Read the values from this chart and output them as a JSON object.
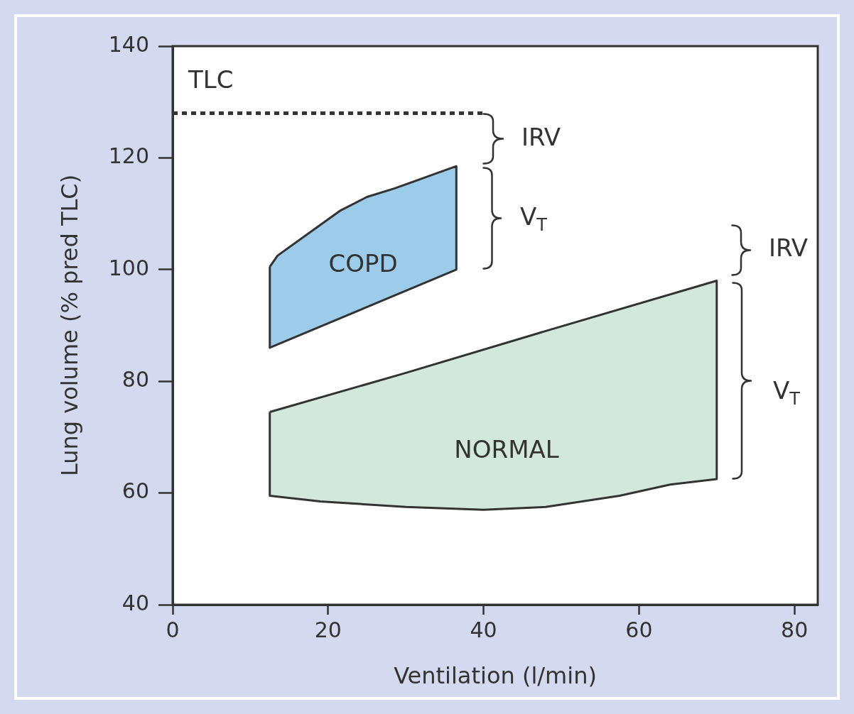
{
  "chart_data": {
    "type": "area",
    "xlabel": "Ventilation (l/min)",
    "ylabel": "Lung volume (% pred TLC)",
    "xlim": [
      0,
      83
    ],
    "xticks": [
      0,
      20,
      40,
      60,
      80
    ],
    "ylim": [
      40,
      140
    ],
    "yticks": [
      40,
      60,
      80,
      100,
      120,
      140
    ],
    "series": [
      {
        "type": "line",
        "color": "#333333",
        "line_style": "dotted",
        "x": [
          0,
          40
        ],
        "values": [
          128,
          128
        ]
      },
      {
        "name": "COPD",
        "color": "#9dcbea",
        "x": [
          12.5,
          13.5,
          18,
          21.5,
          25,
          28.5,
          32.5,
          36.5,
          36.5,
          12.5
        ],
        "values": [
          100.5,
          102.5,
          107,
          110.5,
          113,
          114.5,
          116.5,
          118.5,
          100,
          86
        ]
      },
      {
        "name": "NORMAL",
        "color": "#d2e8dc",
        "x": [
          12.5,
          30,
          48,
          70,
          70,
          64,
          57.5,
          48,
          40,
          30,
          19,
          12.5
        ],
        "values": [
          74.5,
          81.5,
          89,
          98,
          62.5,
          61.5,
          59.5,
          57.5,
          57,
          57.5,
          58.5,
          59.5
        ]
      }
    ],
    "annotations": [
      {
        "text": "TLC",
        "x": 0,
        "y": 128
      },
      "IRV",
      "V$_{T}$",
      "IRV",
      "V$_{T}$"
    ]
  }
}
